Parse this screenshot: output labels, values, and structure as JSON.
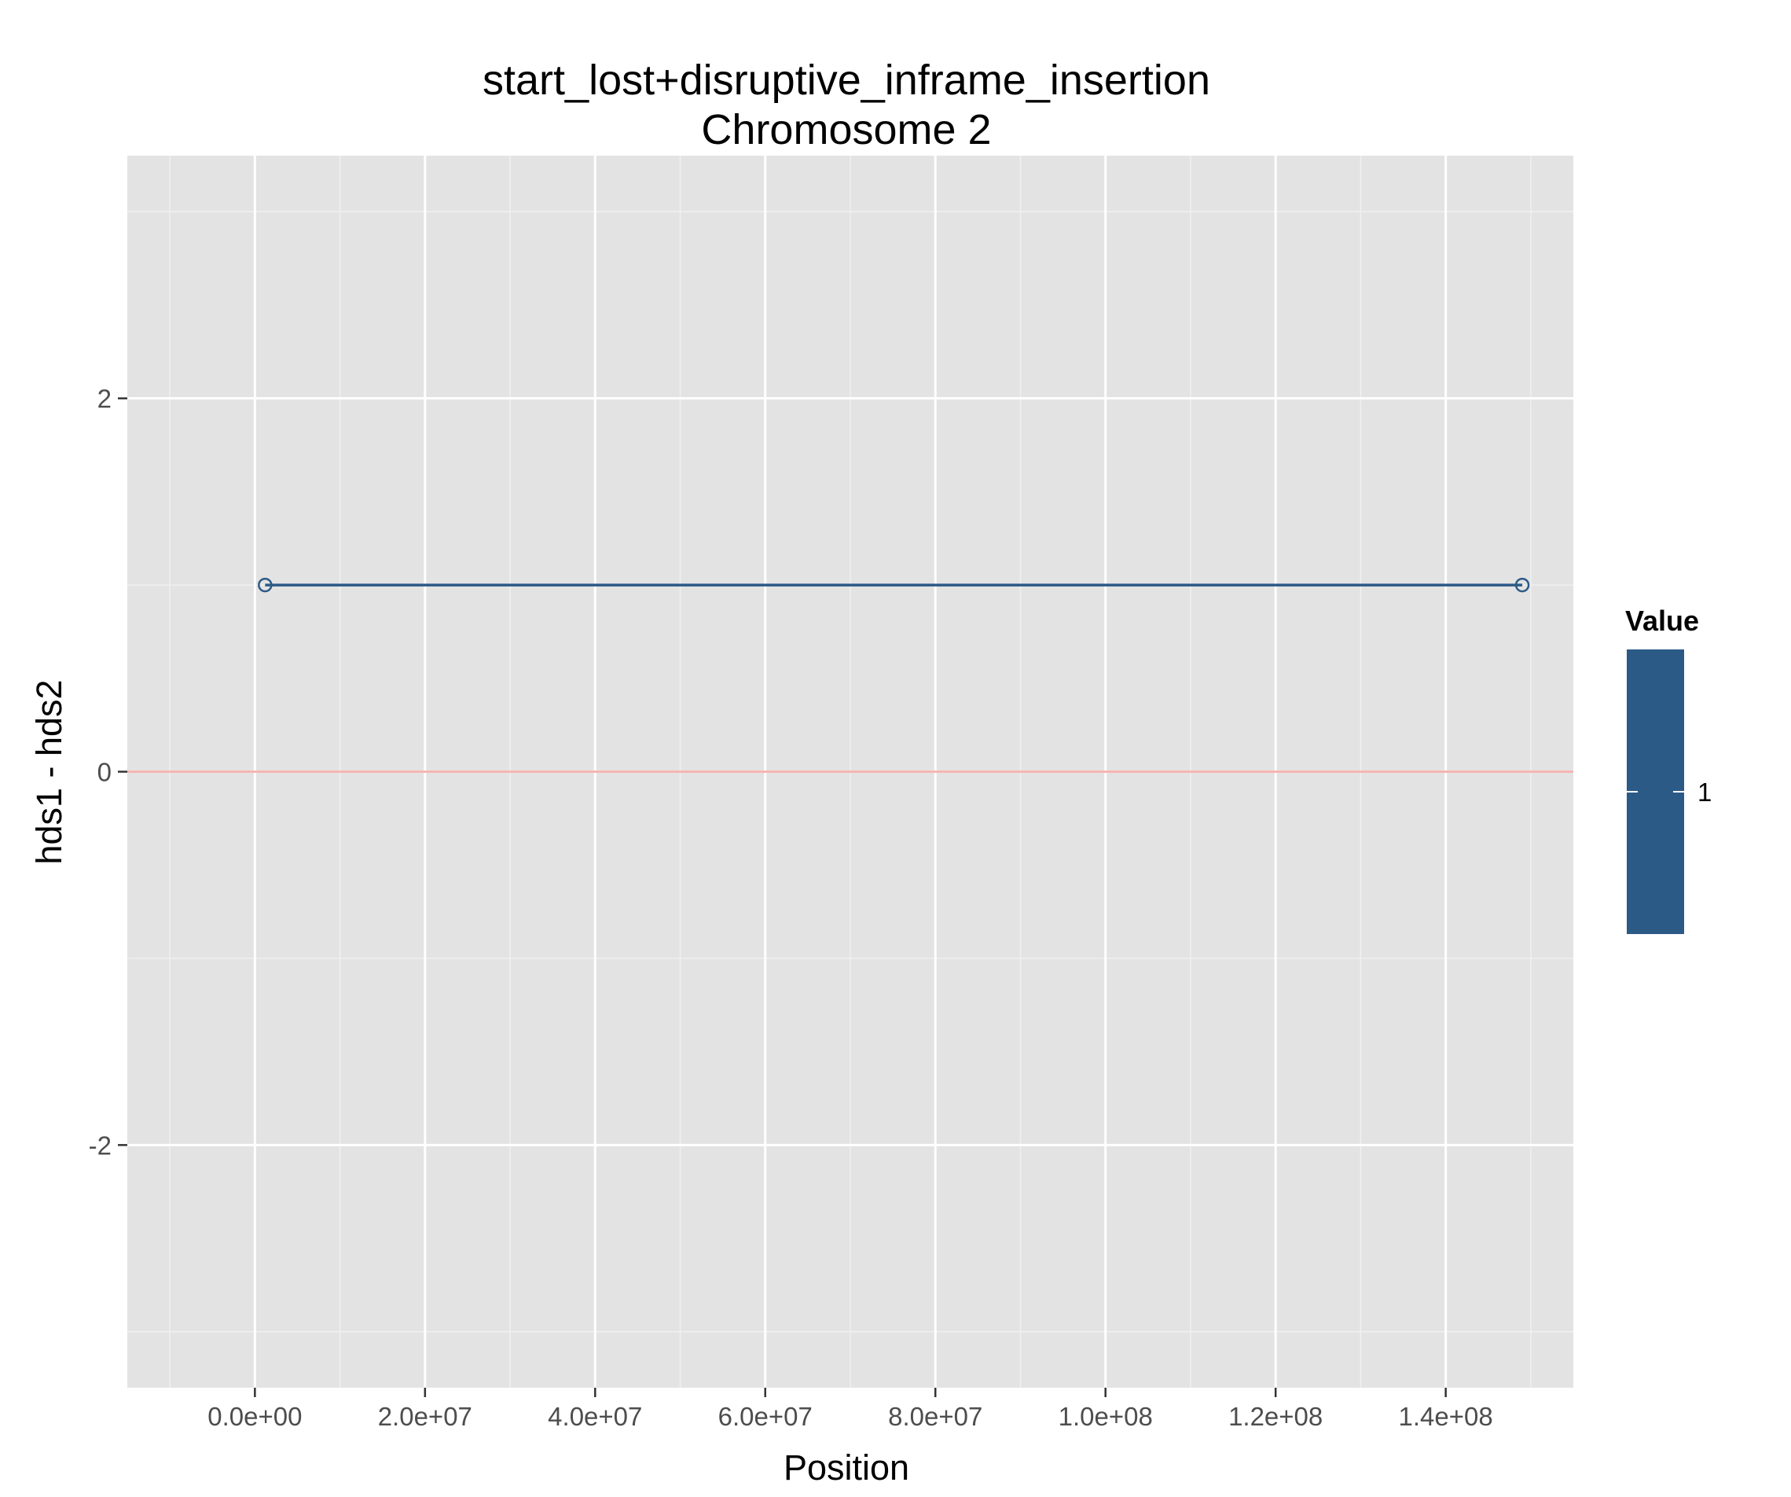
{
  "chart_data": {
    "type": "line",
    "title_lines": [
      "start_lost+disruptive_inframe_insertion",
      "Chromosome 2"
    ],
    "xlabel": "Position",
    "ylabel": "hds1 - hds2",
    "xlim": [
      -15000000,
      155000000
    ],
    "ylim": [
      -3.3,
      3.3
    ],
    "x_ticks": [
      {
        "value": 0,
        "label": "0.0e+00"
      },
      {
        "value": 20000000,
        "label": "2.0e+07"
      },
      {
        "value": 40000000,
        "label": "4.0e+07"
      },
      {
        "value": 60000000,
        "label": "6.0e+07"
      },
      {
        "value": 80000000,
        "label": "8.0e+07"
      },
      {
        "value": 100000000,
        "label": "1.0e+08"
      },
      {
        "value": 120000000,
        "label": "1.2e+08"
      },
      {
        "value": 140000000,
        "label": "1.4e+08"
      }
    ],
    "x_minor_ticks": [
      -10000000,
      10000000,
      30000000,
      50000000,
      70000000,
      90000000,
      110000000,
      130000000,
      150000000
    ],
    "y_ticks": [
      {
        "value": 2,
        "label": "2"
      },
      {
        "value": 0,
        "label": "0"
      },
      {
        "value": -2,
        "label": "-2"
      }
    ],
    "y_minor_ticks": [
      3,
      1,
      -1,
      -3
    ],
    "reference_line": {
      "y": 0,
      "color": "#f8b4b4"
    },
    "series": [
      {
        "color": "#2b5a87",
        "points": [
          {
            "x": 1200000,
            "y": 1
          },
          {
            "x": 149000000,
            "y": 1
          }
        ]
      }
    ],
    "legend": {
      "title": "Value",
      "placement": "right",
      "entries": [
        {
          "label": "1",
          "color": "#2b5a87"
        }
      ]
    },
    "panel_background": "#e3e3e3",
    "grid": true
  }
}
